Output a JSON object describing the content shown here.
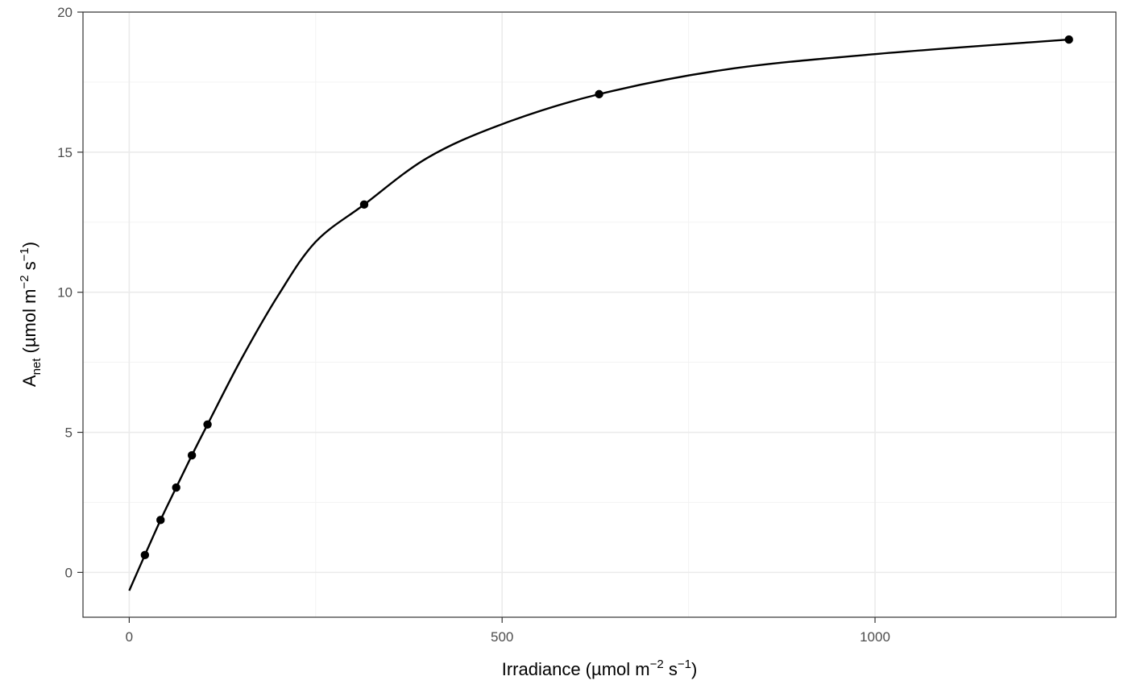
{
  "chart_data": {
    "type": "scatter",
    "xlabel": {
      "main": "Irradiance (",
      "unit": "µmol m",
      "exp1": "−2",
      "mid": " s",
      "exp2": "−1",
      "end": ")"
    },
    "ylabel": {
      "main": "A",
      "sub": "net",
      "unit": " (µmol m",
      "exp1": "−2",
      "mid": " s",
      "exp2": "−1",
      "end": ")"
    },
    "xlim": [
      -62,
      1323
    ],
    "ylim": [
      -1.6,
      20
    ],
    "x_ticks": [
      0,
      500,
      1000
    ],
    "x_tick_labels": [
      "0",
      "500",
      "1000"
    ],
    "y_ticks": [
      0,
      5,
      10,
      15,
      20
    ],
    "y_tick_labels": [
      "0",
      "5",
      "10",
      "15",
      "20"
    ],
    "grid": true,
    "series": [
      {
        "marker": "point",
        "color": "#000000",
        "x": [
          21,
          42,
          63,
          84,
          105,
          315,
          630,
          1260
        ],
        "y": [
          0.62,
          1.87,
          3.03,
          4.18,
          5.28,
          13.13,
          17.07,
          19.02
        ]
      }
    ],
    "fit_line": {
      "color": "#000000",
      "x": [
        0,
        21,
        42,
        63,
        84,
        105,
        150,
        200,
        250,
        315,
        400,
        500,
        630,
        800,
        1000,
        1260
      ],
      "y": [
        -0.65,
        0.62,
        1.87,
        3.03,
        4.18,
        5.28,
        7.6,
        9.9,
        11.8,
        13.13,
        14.8,
        16.0,
        17.07,
        17.95,
        18.5,
        19.02
      ]
    }
  }
}
